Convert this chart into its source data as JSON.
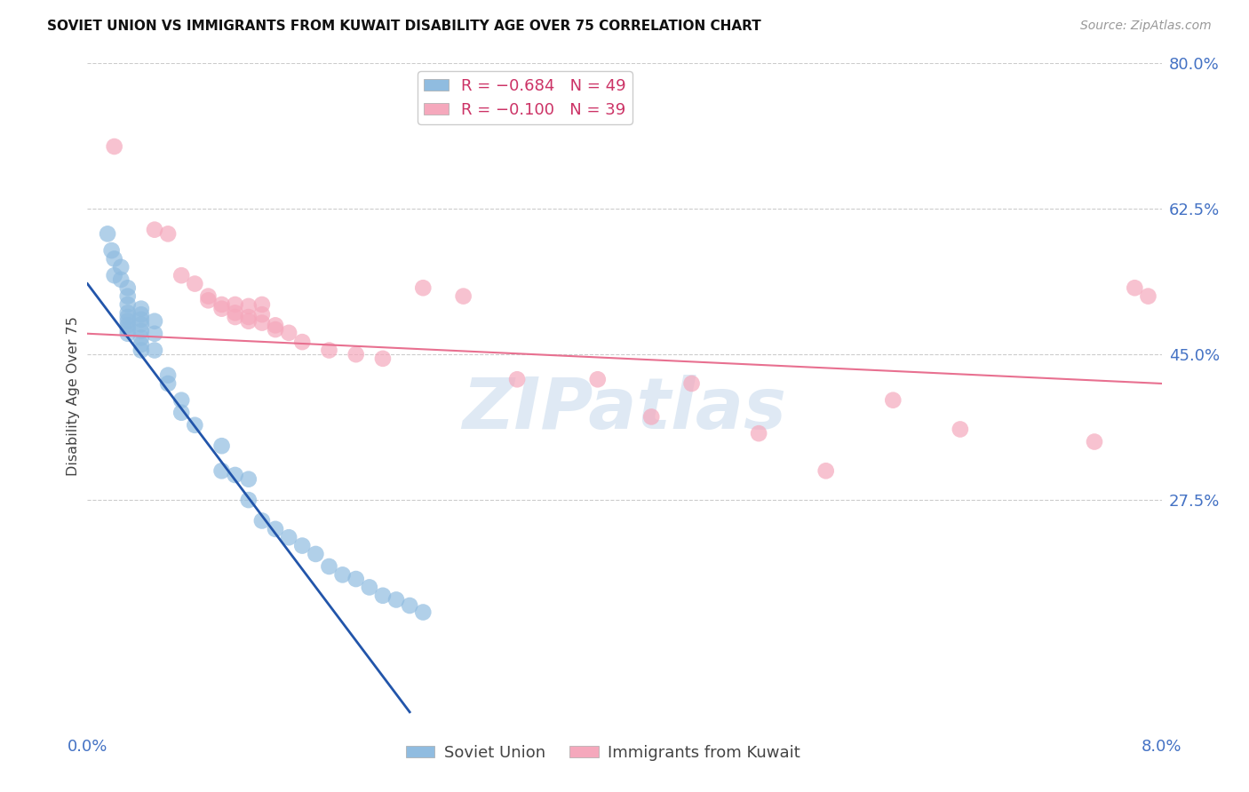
{
  "title": "SOVIET UNION VS IMMIGRANTS FROM KUWAIT DISABILITY AGE OVER 75 CORRELATION CHART",
  "source": "Source: ZipAtlas.com",
  "ylabel": "Disability Age Over 75",
  "xmin": 0.0,
  "xmax": 0.08,
  "ymin": 0.0,
  "ymax": 0.8,
  "yticks": [
    0.0,
    0.275,
    0.45,
    0.625,
    0.8
  ],
  "ytick_labels": [
    "",
    "27.5%",
    "45.0%",
    "62.5%",
    "80.0%"
  ],
  "soviet_color": "#90bce0",
  "kuwait_color": "#f5a8bc",
  "trendline_soviet_color": "#2255aa",
  "trendline_kuwait_color": "#e87090",
  "soviet_trendline_x": [
    0.0,
    0.024
  ],
  "soviet_trendline_y": [
    0.535,
    0.02
  ],
  "kuwait_trendline_x": [
    0.0,
    0.08
  ],
  "kuwait_trendline_y": [
    0.475,
    0.415
  ],
  "soviet_points": [
    [
      0.0015,
      0.595
    ],
    [
      0.0018,
      0.575
    ],
    [
      0.002,
      0.565
    ],
    [
      0.002,
      0.545
    ],
    [
      0.0025,
      0.555
    ],
    [
      0.0025,
      0.54
    ],
    [
      0.003,
      0.53
    ],
    [
      0.003,
      0.52
    ],
    [
      0.003,
      0.51
    ],
    [
      0.003,
      0.5
    ],
    [
      0.003,
      0.495
    ],
    [
      0.003,
      0.49
    ],
    [
      0.003,
      0.485
    ],
    [
      0.003,
      0.48
    ],
    [
      0.003,
      0.475
    ],
    [
      0.004,
      0.505
    ],
    [
      0.004,
      0.498
    ],
    [
      0.004,
      0.492
    ],
    [
      0.004,
      0.486
    ],
    [
      0.004,
      0.478
    ],
    [
      0.004,
      0.47
    ],
    [
      0.004,
      0.462
    ],
    [
      0.004,
      0.455
    ],
    [
      0.005,
      0.49
    ],
    [
      0.005,
      0.475
    ],
    [
      0.005,
      0.455
    ],
    [
      0.006,
      0.425
    ],
    [
      0.006,
      0.415
    ],
    [
      0.007,
      0.395
    ],
    [
      0.007,
      0.38
    ],
    [
      0.008,
      0.365
    ],
    [
      0.01,
      0.34
    ],
    [
      0.01,
      0.31
    ],
    [
      0.011,
      0.305
    ],
    [
      0.012,
      0.3
    ],
    [
      0.012,
      0.275
    ],
    [
      0.013,
      0.25
    ],
    [
      0.014,
      0.24
    ],
    [
      0.015,
      0.23
    ],
    [
      0.016,
      0.22
    ],
    [
      0.017,
      0.21
    ],
    [
      0.018,
      0.195
    ],
    [
      0.019,
      0.185
    ],
    [
      0.02,
      0.18
    ],
    [
      0.021,
      0.17
    ],
    [
      0.022,
      0.16
    ],
    [
      0.023,
      0.155
    ],
    [
      0.024,
      0.148
    ],
    [
      0.025,
      0.14
    ]
  ],
  "kuwait_points": [
    [
      0.002,
      0.7
    ],
    [
      0.005,
      0.6
    ],
    [
      0.006,
      0.595
    ],
    [
      0.007,
      0.545
    ],
    [
      0.008,
      0.535
    ],
    [
      0.009,
      0.52
    ],
    [
      0.009,
      0.515
    ],
    [
      0.01,
      0.51
    ],
    [
      0.01,
      0.505
    ],
    [
      0.011,
      0.51
    ],
    [
      0.011,
      0.5
    ],
    [
      0.011,
      0.495
    ],
    [
      0.012,
      0.508
    ],
    [
      0.012,
      0.495
    ],
    [
      0.012,
      0.49
    ],
    [
      0.013,
      0.51
    ],
    [
      0.013,
      0.498
    ],
    [
      0.013,
      0.488
    ],
    [
      0.014,
      0.485
    ],
    [
      0.014,
      0.48
    ],
    [
      0.015,
      0.476
    ],
    [
      0.016,
      0.465
    ],
    [
      0.018,
      0.455
    ],
    [
      0.02,
      0.45
    ],
    [
      0.022,
      0.445
    ],
    [
      0.025,
      0.53
    ],
    [
      0.028,
      0.52
    ],
    [
      0.032,
      0.42
    ],
    [
      0.038,
      0.42
    ],
    [
      0.042,
      0.375
    ],
    [
      0.045,
      0.415
    ],
    [
      0.05,
      0.355
    ],
    [
      0.055,
      0.31
    ],
    [
      0.06,
      0.395
    ],
    [
      0.065,
      0.36
    ],
    [
      0.075,
      0.345
    ],
    [
      0.078,
      0.53
    ],
    [
      0.079,
      0.52
    ]
  ]
}
